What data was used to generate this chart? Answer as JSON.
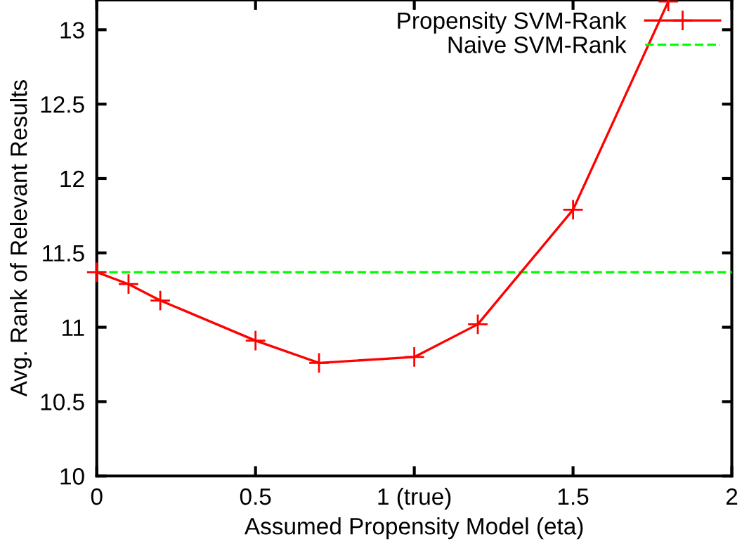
{
  "chart_data": {
    "type": "line",
    "xlabel": "Assumed Propensity Model (eta)",
    "ylabel": "Avg. Rank of Relevant Results",
    "xlim": [
      0,
      2
    ],
    "ylim": [
      10,
      13.2
    ],
    "xticks": [
      0,
      0.5,
      {
        "value": 1,
        "label": "1 (true)"
      },
      1.5,
      2
    ],
    "yticks": [
      10,
      10.5,
      11,
      11.5,
      12,
      12.5,
      13
    ],
    "legend": "top right",
    "grid": false,
    "series": [
      {
        "name": "Propensity SVM-Rank",
        "color": "#ff0000",
        "marker": "cross",
        "line_style": "solid",
        "x": [
          0,
          0.1,
          0.2,
          0.5,
          0.7,
          1.0,
          1.2,
          1.5,
          1.8
        ],
        "values": [
          11.37,
          11.29,
          11.18,
          10.91,
          10.76,
          10.8,
          11.02,
          11.79,
          13.19
        ]
      },
      {
        "name": "Naive SVM-Rank",
        "color": "#00ff00",
        "marker": "none",
        "line_style": "dashed",
        "x": [
          0,
          2
        ],
        "values": [
          11.37,
          11.37
        ]
      }
    ]
  }
}
